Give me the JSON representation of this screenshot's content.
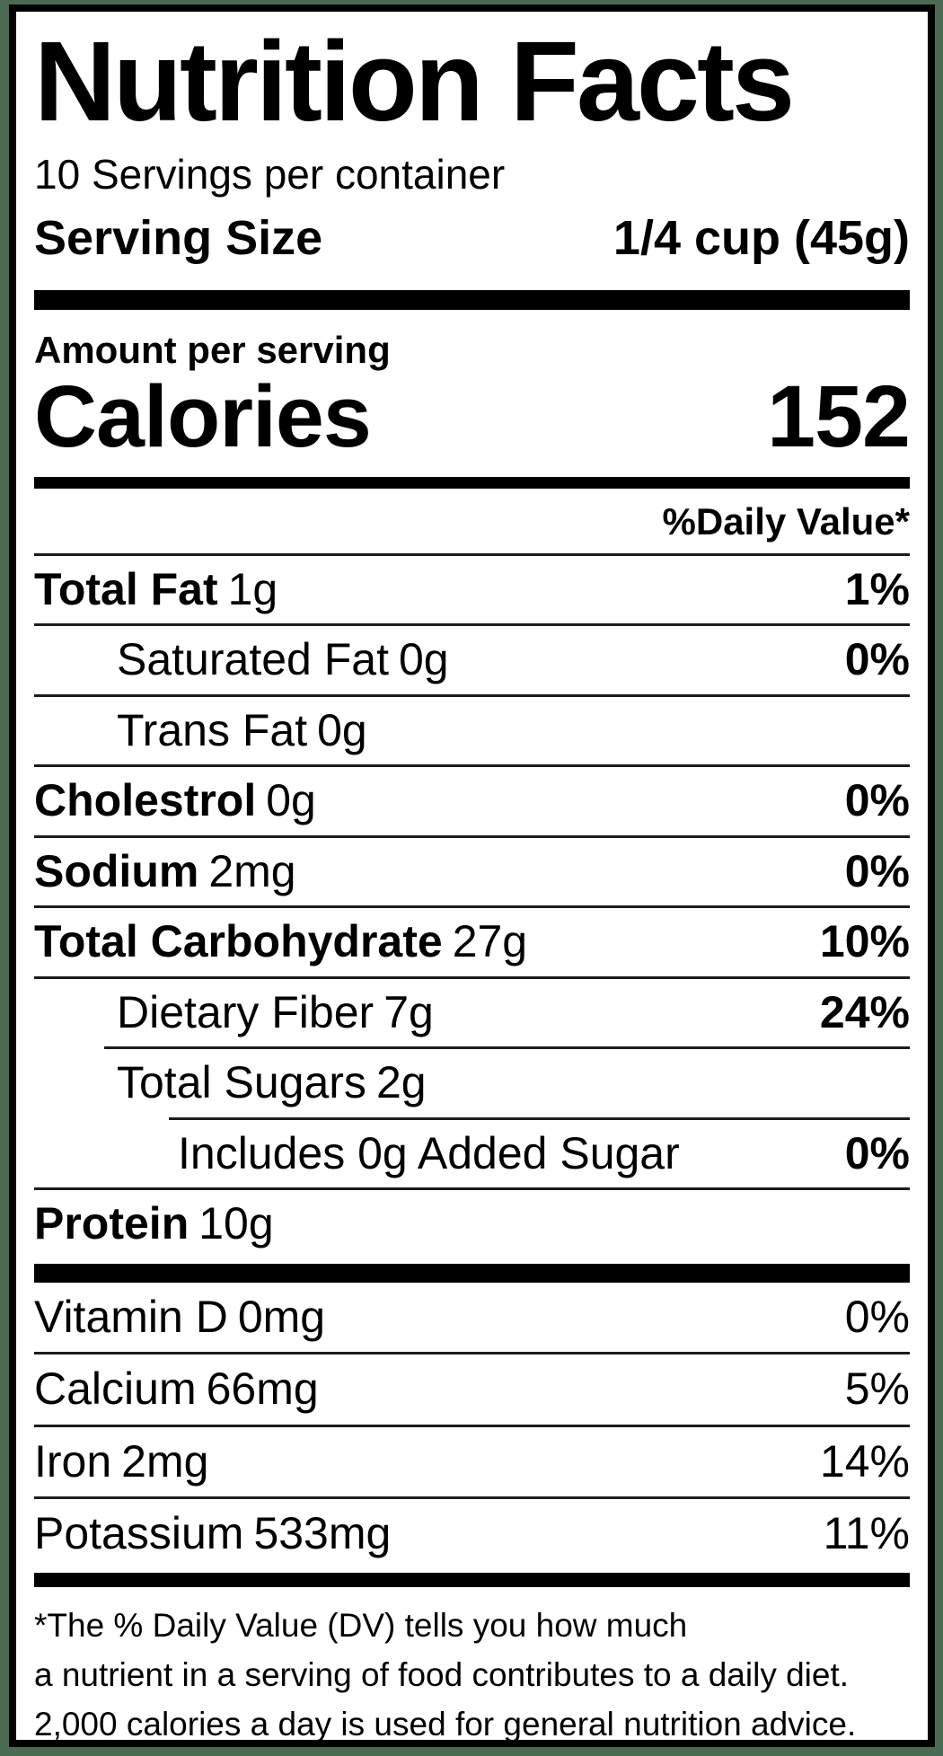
{
  "colors": {
    "background_green": "#4a6a52",
    "border_black": "#000000",
    "label_bg": "#ffffff"
  },
  "header": {
    "title": "Nutrition Facts",
    "servings_per_container": "10 Servings per container",
    "serving_size_label": "Serving Size",
    "serving_size_value": "1/4 cup (45g)"
  },
  "calories": {
    "amount_per_serving_label": "Amount per serving",
    "label": "Calories",
    "value": "152"
  },
  "daily_value_header": "%Daily Value*",
  "nutrients": [
    {
      "name": "Total Fat",
      "amount": "1g",
      "dv": "1%"
    },
    {
      "name": "Saturated Fat",
      "amount": "0g",
      "dv": "0%"
    },
    {
      "name": "Trans Fat",
      "amount": "0g",
      "dv": ""
    },
    {
      "name": "Cholestrol",
      "amount": "0g",
      "dv": "0%"
    },
    {
      "name": "Sodium",
      "amount": "2mg",
      "dv": "0%"
    },
    {
      "name": "Total Carbohydrate",
      "amount": "27g",
      "dv": "10%"
    },
    {
      "name": "Dietary Fiber",
      "amount": "7g",
      "dv": "24%"
    },
    {
      "name": "Total Sugars",
      "amount": "2g",
      "dv": ""
    },
    {
      "name": "Includes 0g Added Sugar",
      "amount": "",
      "dv": "0%"
    },
    {
      "name": "Protein",
      "amount": "10g",
      "dv": ""
    }
  ],
  "vitamins": [
    {
      "name": "Vitamin D",
      "amount": "0mg",
      "dv": "0%"
    },
    {
      "name": "Calcium",
      "amount": "66mg",
      "dv": "5%"
    },
    {
      "name": "Iron",
      "amount": "2mg",
      "dv": "14%"
    },
    {
      "name": "Potassium",
      "amount": "533mg",
      "dv": "11%"
    }
  ],
  "footnote_lines": [
    "*The % Daily Value (DV) tells you how much",
    "a nutrient in a serving of food contributes to a daily diet.",
    "2,000 calories a day is used for general nutrition advice."
  ]
}
